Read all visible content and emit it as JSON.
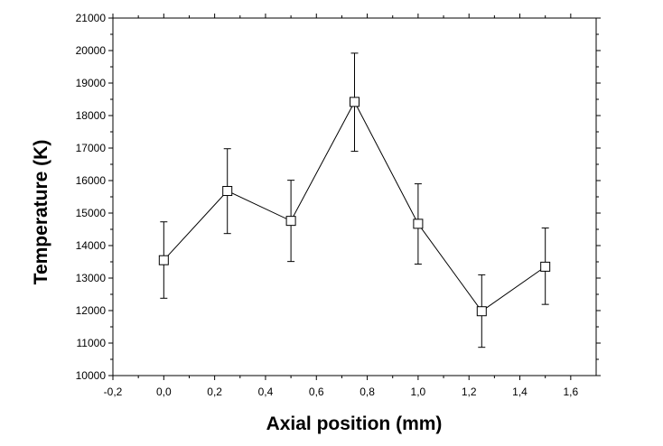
{
  "chart_data": {
    "type": "scatter",
    "title": "",
    "xlabel": "Axial position (mm)",
    "ylabel": "Temperature (K)",
    "xlim": [
      -0.2,
      1.7
    ],
    "ylim": [
      10000,
      21000
    ],
    "x_ticks": [
      -0.2,
      0.0,
      0.2,
      0.4,
      0.6,
      0.8,
      1.0,
      1.2,
      1.4,
      1.6
    ],
    "x_tick_labels": [
      "-0,2",
      "0,0",
      "0,2",
      "0,4",
      "0,6",
      "0,8",
      "1,0",
      "1,2",
      "1,4",
      "1,6"
    ],
    "y_ticks": [
      10000,
      11000,
      12000,
      13000,
      14000,
      15000,
      16000,
      17000,
      18000,
      19000,
      20000,
      21000
    ],
    "y_tick_labels": [
      "10000",
      "11000",
      "12000",
      "13000",
      "14000",
      "15000",
      "16000",
      "17000",
      "18000",
      "19000",
      "20000",
      "21000"
    ],
    "grid": false,
    "legend": "none",
    "marker": "open-square",
    "line_color": "#000000",
    "series": [
      {
        "x": [
          0.0,
          0.25,
          0.5,
          0.75,
          1.0,
          1.25,
          1.5
        ],
        "y": [
          13550,
          15680,
          14760,
          18420,
          14670,
          11980,
          13350
        ],
        "y_err_upper": [
          14730,
          16980,
          16010,
          19920,
          15900,
          13100,
          14540
        ],
        "y_err_lower": [
          12380,
          14370,
          13510,
          16900,
          13430,
          10870,
          12190
        ]
      }
    ]
  }
}
